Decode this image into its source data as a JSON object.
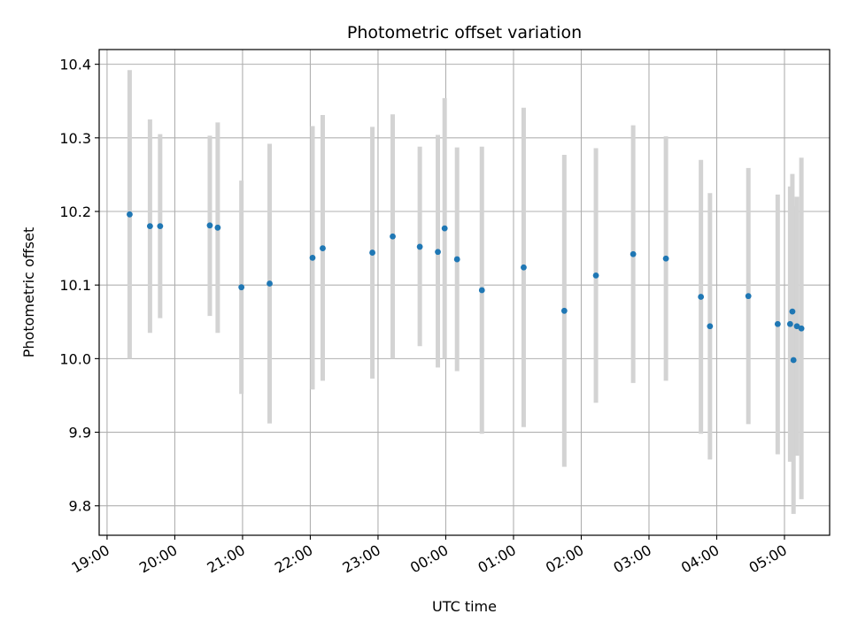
{
  "chart_data": {
    "type": "scatter",
    "title": "Photometric offset variation",
    "xlabel": "UTC time",
    "ylabel": "Photometric offset",
    "x_axis": {
      "kind": "time",
      "range": [
        "18:53",
        "05:40"
      ],
      "ticks": [
        "19:00",
        "20:00",
        "21:00",
        "22:00",
        "23:00",
        "00:00",
        "01:00",
        "02:00",
        "03:00",
        "04:00",
        "05:00"
      ]
    },
    "y_axis": {
      "range": [
        9.76,
        10.42
      ],
      "ticks": [
        "9.8",
        "9.9",
        "10.0",
        "10.1",
        "10.2",
        "10.3",
        "10.4"
      ]
    },
    "grid": true,
    "point_color": "#1f77b4",
    "errorbar_color": "#d3d3d3",
    "series": [
      {
        "points": [
          {
            "time": "19:20",
            "y": 10.196,
            "low": 10.0,
            "high": 10.392
          },
          {
            "time": "19:38",
            "y": 10.18,
            "low": 10.035,
            "high": 10.325
          },
          {
            "time": "19:47",
            "y": 10.18,
            "low": 10.055,
            "high": 10.305
          },
          {
            "time": "20:31",
            "y": 10.181,
            "low": 10.058,
            "high": 10.303
          },
          {
            "time": "20:38",
            "y": 10.178,
            "low": 10.035,
            "high": 10.321
          },
          {
            "time": "20:59",
            "y": 10.097,
            "low": 9.952,
            "high": 10.242
          },
          {
            "time": "21:24",
            "y": 10.102,
            "low": 9.912,
            "high": 10.292
          },
          {
            "time": "22:02",
            "y": 10.137,
            "low": 9.958,
            "high": 10.316
          },
          {
            "time": "22:11",
            "y": 10.15,
            "low": 9.97,
            "high": 10.331
          },
          {
            "time": "22:55",
            "y": 10.144,
            "low": 9.973,
            "high": 10.315
          },
          {
            "time": "23:13",
            "y": 10.166,
            "low": 10.0,
            "high": 10.332
          },
          {
            "time": "23:37",
            "y": 10.152,
            "low": 10.017,
            "high": 10.288
          },
          {
            "time": "23:53",
            "y": 10.145,
            "low": 9.988,
            "high": 10.304
          },
          {
            "time": "23:59",
            "y": 10.177,
            "low": 10.0,
            "high": 10.354
          },
          {
            "time": "00:10",
            "y": 10.135,
            "low": 9.983,
            "high": 10.287
          },
          {
            "time": "00:32",
            "y": 10.093,
            "low": 9.898,
            "high": 10.288
          },
          {
            "time": "01:09",
            "y": 10.124,
            "low": 9.907,
            "high": 10.341
          },
          {
            "time": "01:45",
            "y": 10.065,
            "low": 9.853,
            "high": 10.277
          },
          {
            "time": "02:13",
            "y": 10.113,
            "low": 9.94,
            "high": 10.286
          },
          {
            "time": "02:46",
            "y": 10.142,
            "low": 9.967,
            "high": 10.317
          },
          {
            "time": "03:15",
            "y": 10.136,
            "low": 9.97,
            "high": 10.302
          },
          {
            "time": "03:46",
            "y": 10.084,
            "low": 9.898,
            "high": 10.27
          },
          {
            "time": "03:54",
            "y": 10.044,
            "low": 9.863,
            "high": 10.225
          },
          {
            "time": "04:28",
            "y": 10.085,
            "low": 9.911,
            "high": 10.259
          },
          {
            "time": "04:54",
            "y": 10.047,
            "low": 9.87,
            "high": 10.223
          },
          {
            "time": "05:05",
            "y": 10.047,
            "low": 9.86,
            "high": 10.234
          },
          {
            "time": "05:07",
            "y": 10.064,
            "low": 9.877,
            "high": 10.251
          },
          {
            "time": "05:08",
            "y": 9.998,
            "low": 9.789,
            "high": 10.207
          },
          {
            "time": "05:11",
            "y": 10.044,
            "low": 9.868,
            "high": 10.22
          },
          {
            "time": "05:15",
            "y": 10.041,
            "low": 9.809,
            "high": 10.273
          }
        ]
      }
    ]
  }
}
